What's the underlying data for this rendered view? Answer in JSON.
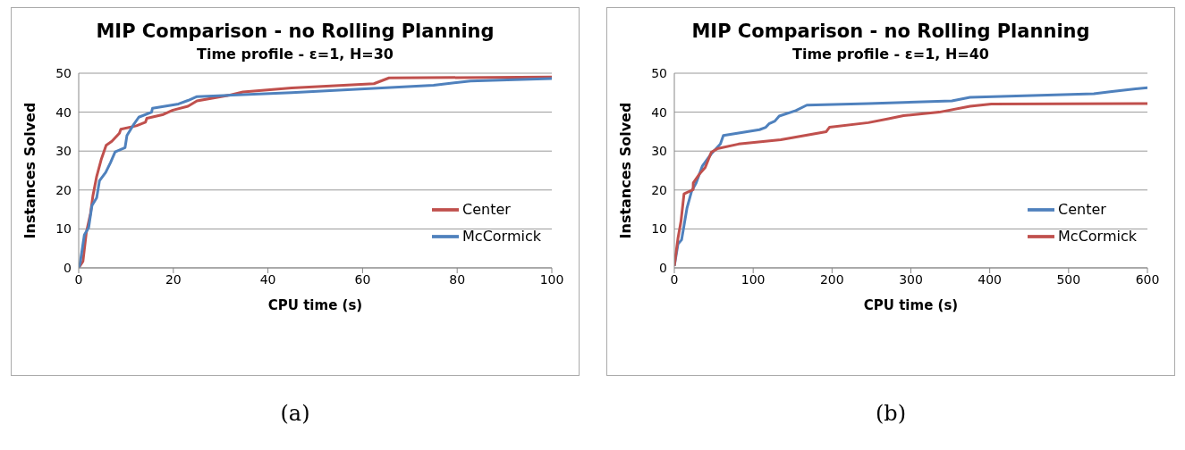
{
  "chart_data": [
    {
      "type": "line",
      "title": "MIP Comparison - no Rolling Planning",
      "subtitle": "Time profile - ε=1, H=30",
      "xlabel": "CPU time (s)",
      "ylabel": "Instances Solved",
      "xlim": [
        0,
        100
      ],
      "xticks": [
        0,
        20,
        40,
        60,
        80,
        100
      ],
      "ylim": [
        0,
        50
      ],
      "yticks": [
        0,
        10,
        20,
        30,
        40,
        50
      ],
      "grid": "y",
      "legend": "right",
      "marker": "none",
      "line_style": "solid",
      "annotations": [
        "(a)"
      ],
      "series": [
        {
          "name": "Center",
          "color": "#c0504d",
          "x": [
            0,
            0.9,
            1.6,
            2.5,
            3,
            3.8,
            4.8,
            5.8,
            7,
            8.6,
            8.9,
            12.2,
            14.1,
            14.4,
            17.9,
            19.9,
            23.1,
            25,
            32,
            34.7,
            45,
            62.4,
            65.6,
            100
          ],
          "values": [
            0,
            1.7,
            9,
            14,
            18.5,
            23.5,
            28,
            31.5,
            32.5,
            34.6,
            35.6,
            36.5,
            37.4,
            38.4,
            39.4,
            40.5,
            41.5,
            42.9,
            44.4,
            45.2,
            46.2,
            47.3,
            48.8,
            49
          ]
        },
        {
          "name": "McCormick",
          "color": "#4f81bd",
          "x": [
            0,
            0.3,
            1.2,
            2.1,
            2.8,
            3.8,
            4.4,
            5.7,
            6.7,
            7.7,
            9.8,
            10.2,
            11.5,
            12.7,
            15.4,
            15.6,
            21.1,
            23.1,
            25,
            45,
            75,
            82.8,
            100
          ],
          "values": [
            0,
            1.2,
            8.5,
            10.3,
            16,
            18,
            22.4,
            24.5,
            27,
            29.8,
            30.9,
            34,
            36.6,
            38.7,
            40,
            41,
            42.1,
            43,
            44,
            45,
            46.9,
            48,
            48.6
          ]
        }
      ]
    },
    {
      "type": "line",
      "title": "MIP Comparison - no Rolling Planning",
      "subtitle": "Time profile - ε=1, H=40",
      "xlabel": "CPU time (s)",
      "ylabel": "Instances Solved",
      "xlim": [
        0,
        600
      ],
      "xticks": [
        0,
        100,
        200,
        300,
        400,
        500,
        600
      ],
      "ylim": [
        0,
        50
      ],
      "yticks": [
        0,
        10,
        20,
        30,
        40,
        50
      ],
      "grid": "y",
      "legend": "right",
      "marker": "none",
      "line_style": "solid",
      "annotations": [
        "(b)"
      ],
      "series": [
        {
          "name": "Center",
          "color": "#4f81bd",
          "x": [
            0,
            4.6,
            9.2,
            16.1,
            21.9,
            27.6,
            35.4,
            46.9,
            58.4,
            62.2,
            108,
            116,
            120,
            127.5,
            133,
            154,
            168,
            246,
            352,
            375,
            532,
            555,
            600
          ],
          "values": [
            0.5,
            6.1,
            7.2,
            15.4,
            19.7,
            21.8,
            26.1,
            29.3,
            31.8,
            34,
            35.5,
            36.1,
            37,
            37.7,
            39,
            40.4,
            41.8,
            42.2,
            42.9,
            43.8,
            44.7,
            45.3,
            46.3
          ]
        },
        {
          "name": "McCormick",
          "color": "#c0504d",
          "x": [
            0,
            4.6,
            8.4,
            12.3,
            23.8,
            24,
            31.5,
            39.2,
            46.9,
            54.5,
            81.4,
            135,
            192.7,
            196.7,
            246,
            271.5,
            290.7,
            336,
            375,
            402,
            600
          ],
          "values": [
            0.5,
            7.6,
            11.9,
            19,
            20.1,
            21.8,
            24,
            25.8,
            29.7,
            30.6,
            31.8,
            32.9,
            35,
            36.1,
            37.3,
            38.3,
            39.1,
            40,
            41.5,
            42.1,
            42.2
          ]
        }
      ]
    }
  ]
}
